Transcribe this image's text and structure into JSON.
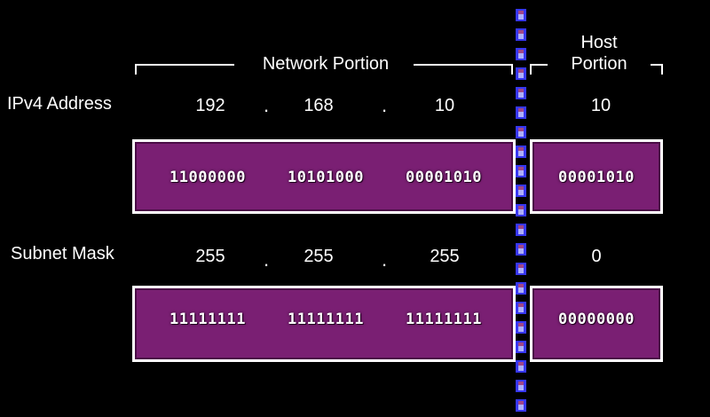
{
  "headers": {
    "network": "Network Portion",
    "host_line1": "Host",
    "host_line2": "Portion"
  },
  "ipv4": {
    "label": "IPv4 Address",
    "octets": [
      "192",
      "168",
      "10",
      "10"
    ],
    "separator": ".",
    "binary": [
      "11000000",
      "10101000",
      "00001010",
      "00001010"
    ]
  },
  "subnet": {
    "label": "Subnet Mask",
    "octets": [
      "255",
      "255",
      "255",
      "0"
    ],
    "separator": ".",
    "binary": [
      "11111111",
      "11111111",
      "11111111",
      "00000000"
    ]
  },
  "colors": {
    "background": "#000000",
    "box_fill": "#7a1f73",
    "box_border": "#ffffff",
    "divider": "#3a3aff"
  }
}
